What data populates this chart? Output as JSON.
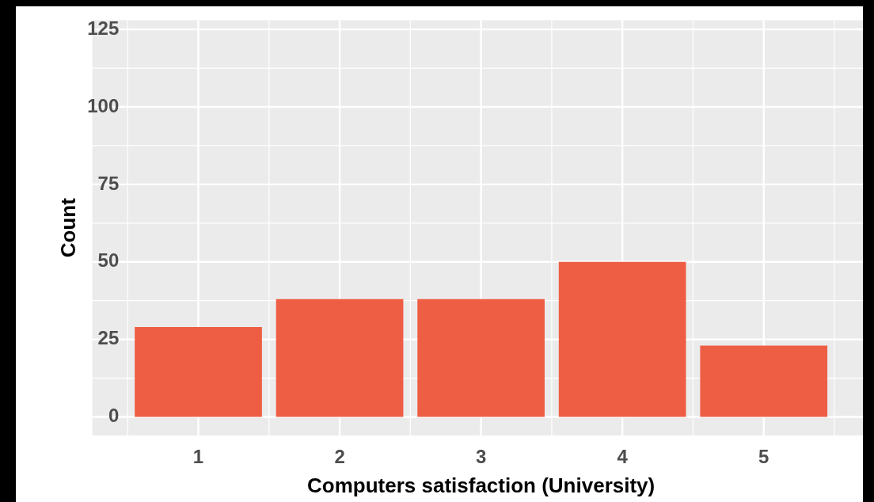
{
  "chart_data": {
    "type": "bar",
    "xlabel": "Computers satisfaction (University)",
    "ylabel": "Count",
    "categories": [
      "1",
      "2",
      "3",
      "4",
      "5"
    ],
    "values": [
      29,
      38,
      38,
      50,
      23
    ],
    "color": "#ee5e44",
    "ylim": [
      -6,
      128
    ],
    "yticks": [
      0,
      25,
      50,
      75,
      100,
      125
    ],
    "grid": true,
    "legend": false
  }
}
